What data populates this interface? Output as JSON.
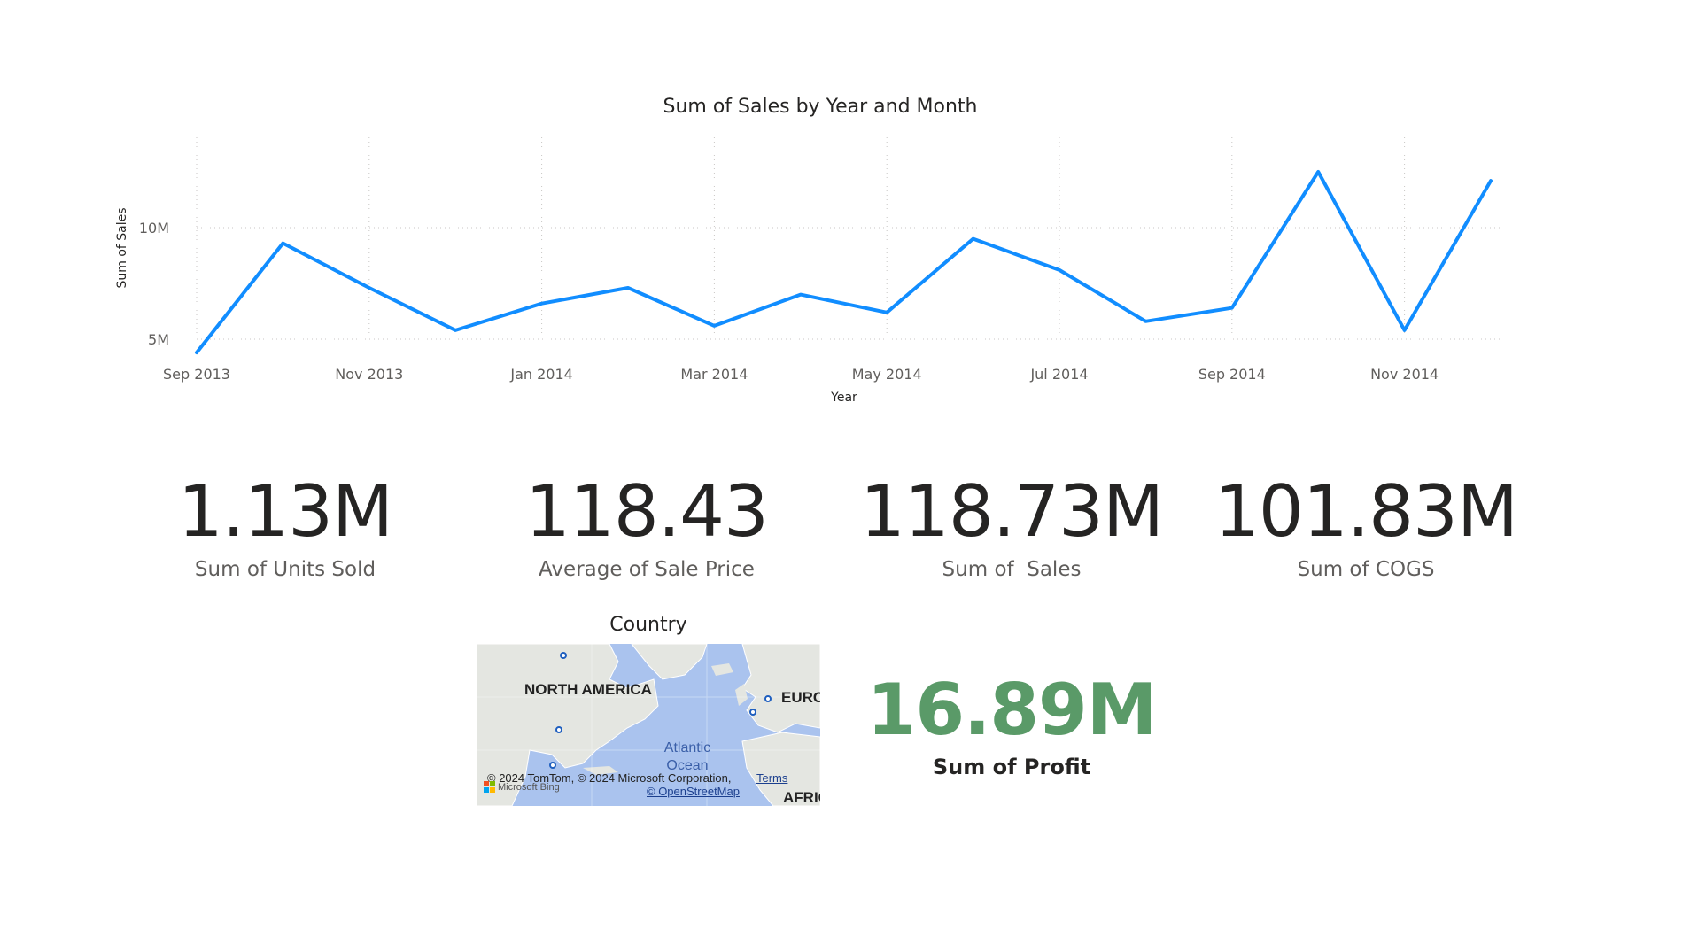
{
  "chart_data": {
    "type": "line",
    "title": "Sum of Sales by Year and Month",
    "xlabel": "Year",
    "ylabel": "Sum of Sales",
    "x": [
      "Sep 2013",
      "Oct 2013",
      "Nov 2013",
      "Dec 2013",
      "Jan 2014",
      "Feb 2014",
      "Mar 2014",
      "Apr 2014",
      "May 2014",
      "Jun 2014",
      "Jul 2014",
      "Aug 2014",
      "Sep 2014",
      "Oct 2014",
      "Nov 2014",
      "Dec 2014"
    ],
    "x_tick_labels": [
      "Sep 2013",
      "Nov 2013",
      "Jan 2014",
      "Mar 2014",
      "May 2014",
      "Jul 2014",
      "Sep 2014",
      "Nov 2014"
    ],
    "y_ticks": [
      {
        "value": 5000000,
        "label": "5M"
      },
      {
        "value": 10000000,
        "label": "10M"
      }
    ],
    "ylim": [
      4000000,
      14000000
    ],
    "series": [
      {
        "name": "Sum of Sales",
        "values": [
          4400000,
          9300000,
          7300000,
          5400000,
          6600000,
          7300000,
          5600000,
          7000000,
          6200000,
          9500000,
          8100000,
          5800000,
          6400000,
          12500000,
          5400000,
          12100000
        ]
      }
    ],
    "grid": true,
    "color": "#118dff"
  },
  "kpis": {
    "units_sold": {
      "value": "1.13M",
      "label": "Sum of Units Sold"
    },
    "sale_price": {
      "value": "118.43",
      "label": "Average of Sale Price"
    },
    "sales": {
      "value": "118.73M",
      "label": "Sum of  Sales"
    },
    "cogs": {
      "value": "101.83M",
      "label": "Sum of COGS"
    },
    "profit": {
      "value": "16.89M",
      "label": "Sum of Profit",
      "color": "#5a9a68"
    }
  },
  "map": {
    "title": "Country",
    "labels": {
      "north_america": "NORTH AMERICA",
      "europe": "EURO",
      "africa": "AFRIC",
      "ocean_line1": "Atlantic",
      "ocean_line2": "Ocean"
    },
    "copyright": "© 2024 TomTom, © 2024 Microsoft Corporation,",
    "terms": "Terms",
    "osm": "© OpenStreetMap",
    "bing": "Microsoft Bing"
  }
}
